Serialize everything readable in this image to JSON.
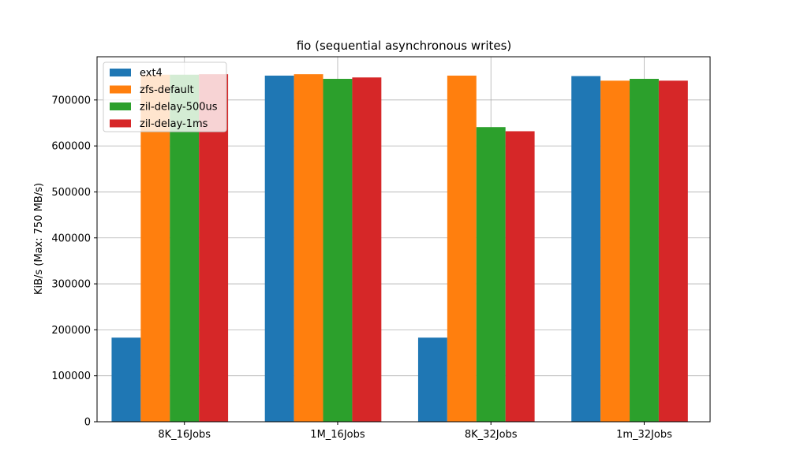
{
  "chart_data": {
    "type": "bar",
    "title": "fio (sequential asynchronous writes)",
    "xlabel": "",
    "ylabel": "KiB/s (Max: 750 MB/s)",
    "categories": [
      "8K_16Jobs",
      "1M_16Jobs",
      "8K_32Jobs",
      "1m_32Jobs"
    ],
    "series": [
      {
        "name": "ext4",
        "color": "#1f77b4",
        "values": [
          183000,
          753000,
          183000,
          752000
        ]
      },
      {
        "name": "zfs-default",
        "color": "#ff7f0e",
        "values": [
          755000,
          756000,
          753000,
          742000
        ]
      },
      {
        "name": "zil-delay-500us",
        "color": "#2ca02c",
        "values": [
          755000,
          746000,
          641000,
          746000
        ]
      },
      {
        "name": "zil-delay-1ms",
        "color": "#d62728",
        "values": [
          756000,
          749000,
          632000,
          742000
        ]
      }
    ],
    "ylim": [
      0,
      794000
    ],
    "yticks": [
      0,
      100000,
      200000,
      300000,
      400000,
      500000,
      600000,
      700000
    ],
    "grid": true,
    "legend_position": "top-left"
  }
}
